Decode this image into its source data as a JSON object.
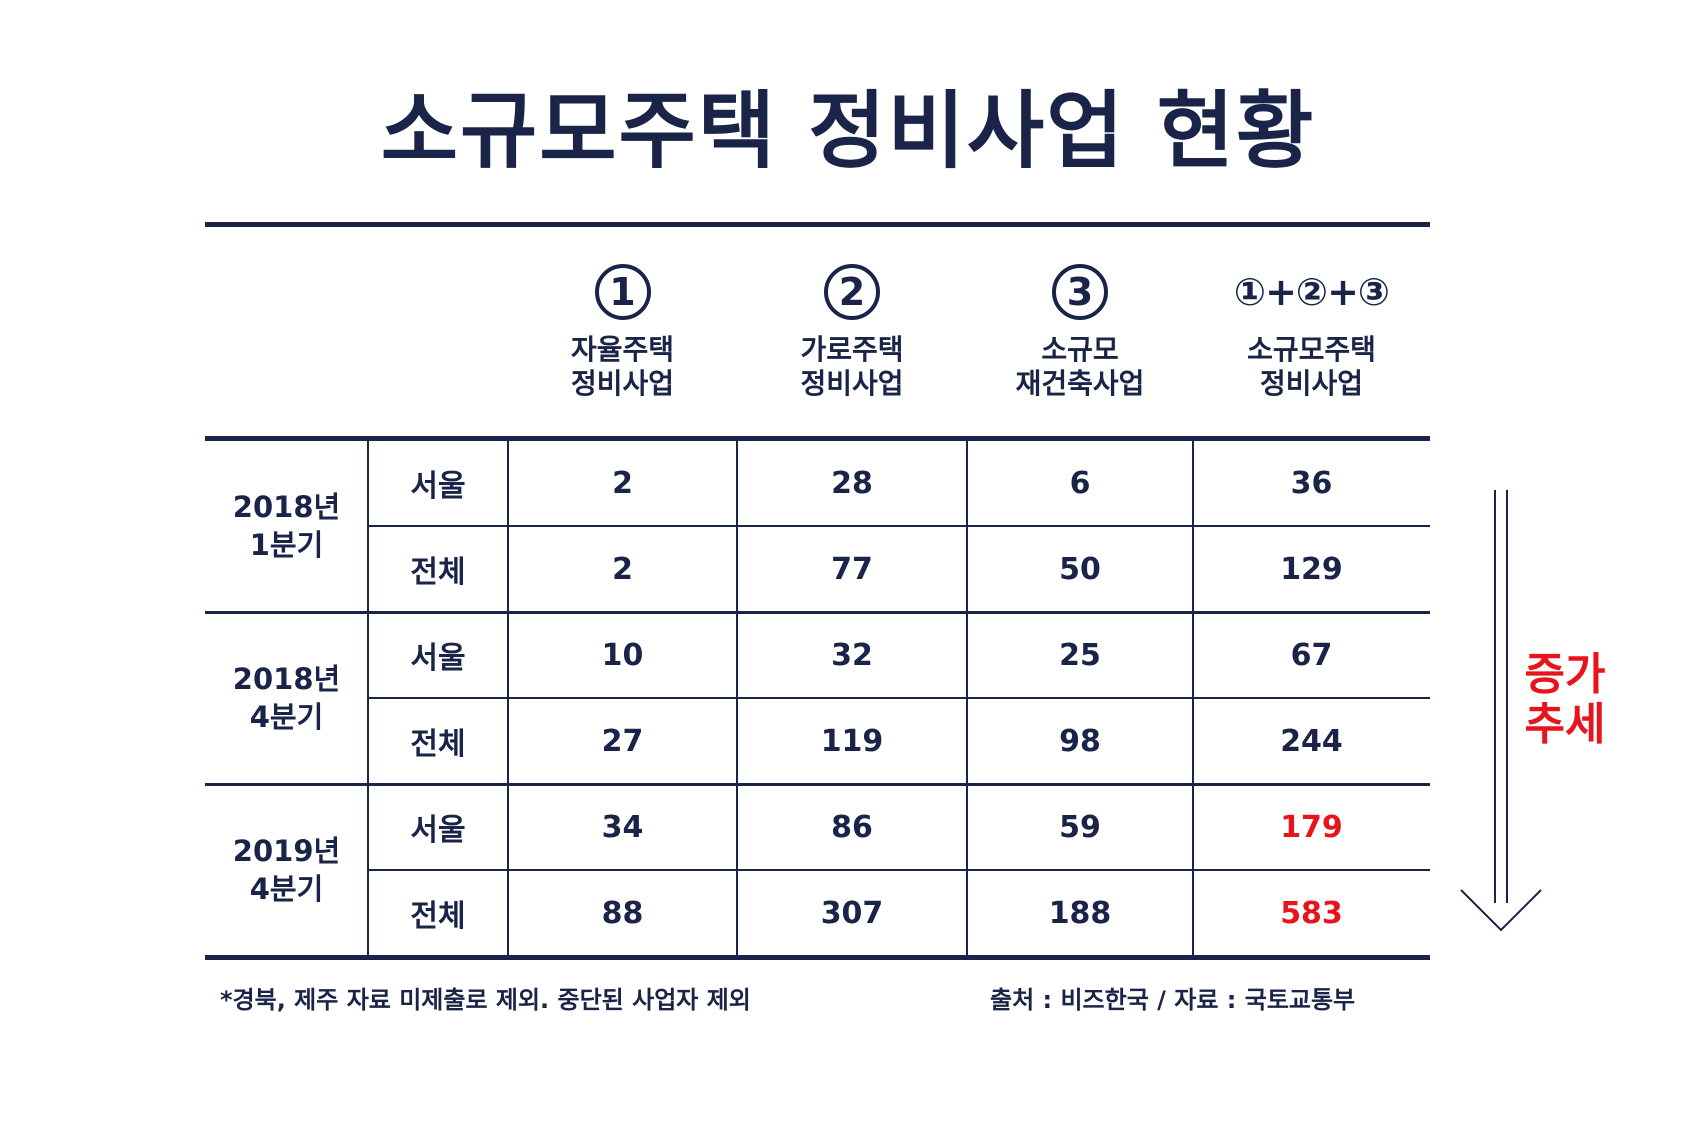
{
  "title": "소규모주택 정비사업 현황",
  "chart_data": {
    "type": "table",
    "columns": [
      {
        "mark": "①",
        "label": "자율주택\n정비사업"
      },
      {
        "mark": "②",
        "label": "가로주택\n정비사업"
      },
      {
        "mark": "③",
        "label": "소규모\n재건축사업"
      },
      {
        "mark": "①+②+③",
        "label": "소규모주택\n정비사업"
      }
    ],
    "groups": [
      {
        "period": "2018년\n1분기",
        "rows": [
          {
            "region": "서울",
            "values": [
              "2",
              "28",
              "6",
              "36"
            ]
          },
          {
            "region": "전체",
            "values": [
              "2",
              "77",
              "50",
              "129"
            ]
          }
        ]
      },
      {
        "period": "2018년\n4분기",
        "rows": [
          {
            "region": "서울",
            "values": [
              "10",
              "32",
              "25",
              "67"
            ]
          },
          {
            "region": "전체",
            "values": [
              "27",
              "119",
              "98",
              "244"
            ]
          }
        ]
      },
      {
        "period": "2019년\n4분기",
        "rows": [
          {
            "region": "서울",
            "values": [
              "34",
              "86",
              "59",
              "179"
            ]
          },
          {
            "region": "전체",
            "values": [
              "88",
              "307",
              "188",
              "583"
            ]
          }
        ]
      }
    ],
    "highlight_cells": [
      "2019년 4분기 서울 소규모주택 정비사업",
      "2019년 4분기 전체 소규모주택 정비사업"
    ]
  },
  "trend_label": "증가\n추세",
  "footnote_left": "*경북, 제주 자료 미제출로 제외. 중단된 사업자 제외",
  "footnote_right": "출처 : 비즈한국 / 자료 : 국토교통부",
  "colors": {
    "navy": "#1a2448",
    "highlight": "#e8141b"
  }
}
